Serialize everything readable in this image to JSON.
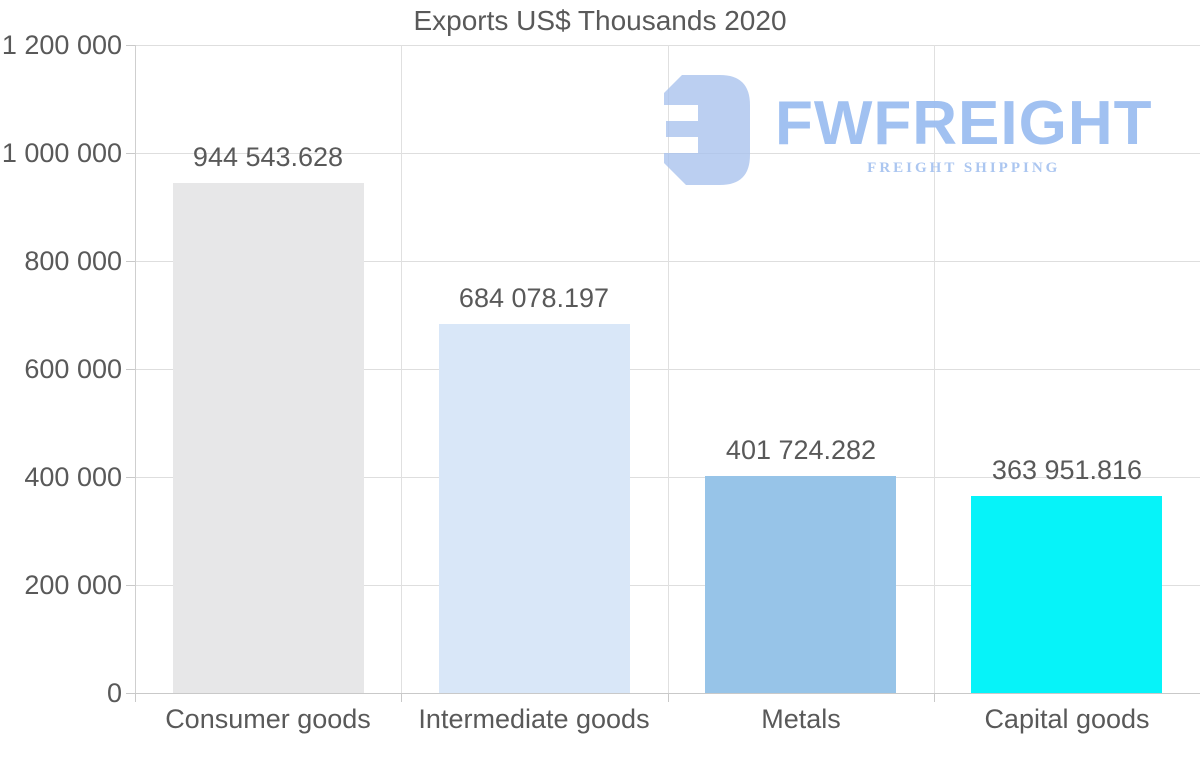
{
  "title": "Exports US$ Thousands 2020",
  "watermark": {
    "brand": "FWFREIGHT",
    "tagline": "FREIGHT SHIPPING",
    "icon": "fwfreight-logo-icon",
    "brand_color": "#9cbef1",
    "icon_color": "#a9c3ee"
  },
  "chart_data": {
    "type": "bar",
    "title": "Exports US$ Thousands 2020",
    "categories": [
      "Consumer goods",
      "Intermediate goods",
      "Metals",
      "Capital goods"
    ],
    "values": [
      944543.628,
      684078.197,
      401724.282,
      363951.816
    ],
    "data_labels": [
      "944 543.628",
      "684 078.197",
      "401 724.282",
      "363 951.816"
    ],
    "bar_colors": [
      "#e7e7e8",
      "#d9e7f8",
      "#97c4e8",
      "#06f3f9"
    ],
    "xlabel": "",
    "ylabel": "",
    "ylim": [
      0,
      1200000
    ],
    "ytick_interval": 200000,
    "ytick_labels": [
      "0",
      "200 000",
      "400 000",
      "600 000",
      "800 000",
      "1 000 000",
      "1 200 000"
    ],
    "grid": true,
    "legend": false,
    "text_color": "#595959",
    "grid_color": "#dedede"
  }
}
